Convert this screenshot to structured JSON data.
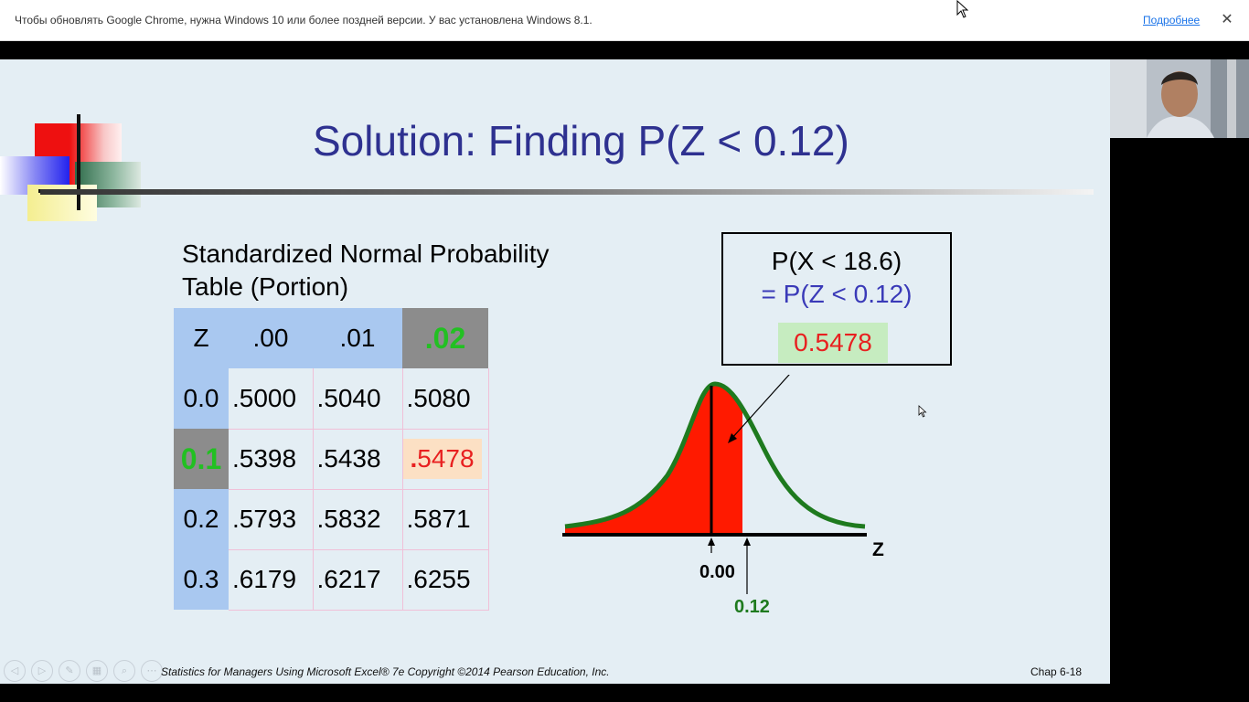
{
  "infobar": {
    "message": "Чтобы обновлять Google Chrome, нужна Windows 10 или более поздней версии. У вас установлена Windows 8.1.",
    "more_link": "Подробнее",
    "close_label": "✕"
  },
  "slide": {
    "title": "Solution: Finding P(Z < 0.12)",
    "table_caption_line1": "Standardized Normal Probability",
    "table_caption_line2": "Table (Portion)",
    "table": {
      "header": [
        "Z",
        ".00",
        ".01",
        ".02"
      ],
      "rows": [
        [
          "0.0",
          ".5000",
          ".5040",
          ".5080"
        ],
        [
          "0.1",
          ".5398",
          ".5438",
          ".5478"
        ],
        [
          "0.2",
          ".5793",
          ".5832",
          ".5871"
        ],
        [
          "0.3",
          ".6179",
          ".6217",
          ".6255"
        ]
      ],
      "highlight_dot": "."
    },
    "result_box": {
      "line1": "P(X < 18.6)",
      "line2": "= P(Z < 0.12)",
      "answer": "0.5478"
    },
    "curve_labels": {
      "axis": "Z",
      "mean": "0.00",
      "value": "0.12"
    },
    "footer": "Statistics for Managers Using Microsoft Excel® 7e Copyright ©2014 Pearson Education, Inc.",
    "chapter": "Chap 6-18"
  },
  "colors": {
    "title": "#2e3190",
    "header_blue": "#a9c8f0",
    "highlight_gray": "#8c8c8c",
    "green": "#22c022",
    "red": "#e82020",
    "curve_green": "#1e7a1e",
    "answer_bg": "#c6ecc0"
  }
}
